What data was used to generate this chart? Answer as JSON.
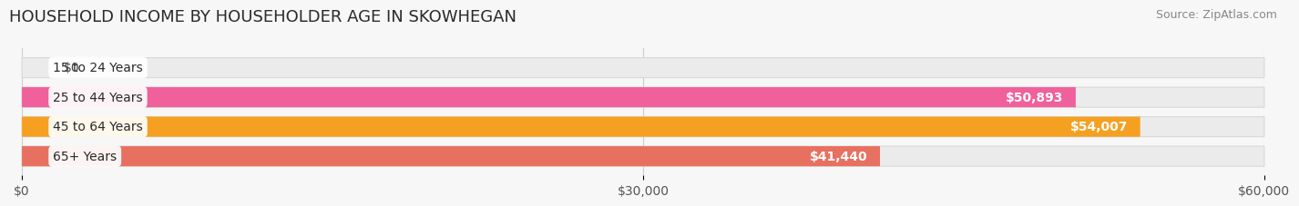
{
  "title": "HOUSEHOLD INCOME BY HOUSEHOLDER AGE IN SKOWHEGAN",
  "source": "Source: ZipAtlas.com",
  "categories": [
    "15 to 24 Years",
    "25 to 44 Years",
    "45 to 64 Years",
    "65+ Years"
  ],
  "values": [
    0,
    50893,
    54007,
    41440
  ],
  "bar_colors": [
    "#b0b0e0",
    "#f0609a",
    "#f5a020",
    "#e87060"
  ],
  "bar_bg_color": "#ebebeb",
  "bar_bg_edge_color": "#d8d8d8",
  "xlim": [
    0,
    60000
  ],
  "xticks": [
    0,
    30000,
    60000
  ],
  "xticklabels": [
    "$0",
    "$30,000",
    "$60,000"
  ],
  "background_color": "#f7f7f7",
  "title_fontsize": 13,
  "source_fontsize": 9,
  "label_fontsize": 10,
  "tick_fontsize": 10,
  "category_fontsize": 10
}
